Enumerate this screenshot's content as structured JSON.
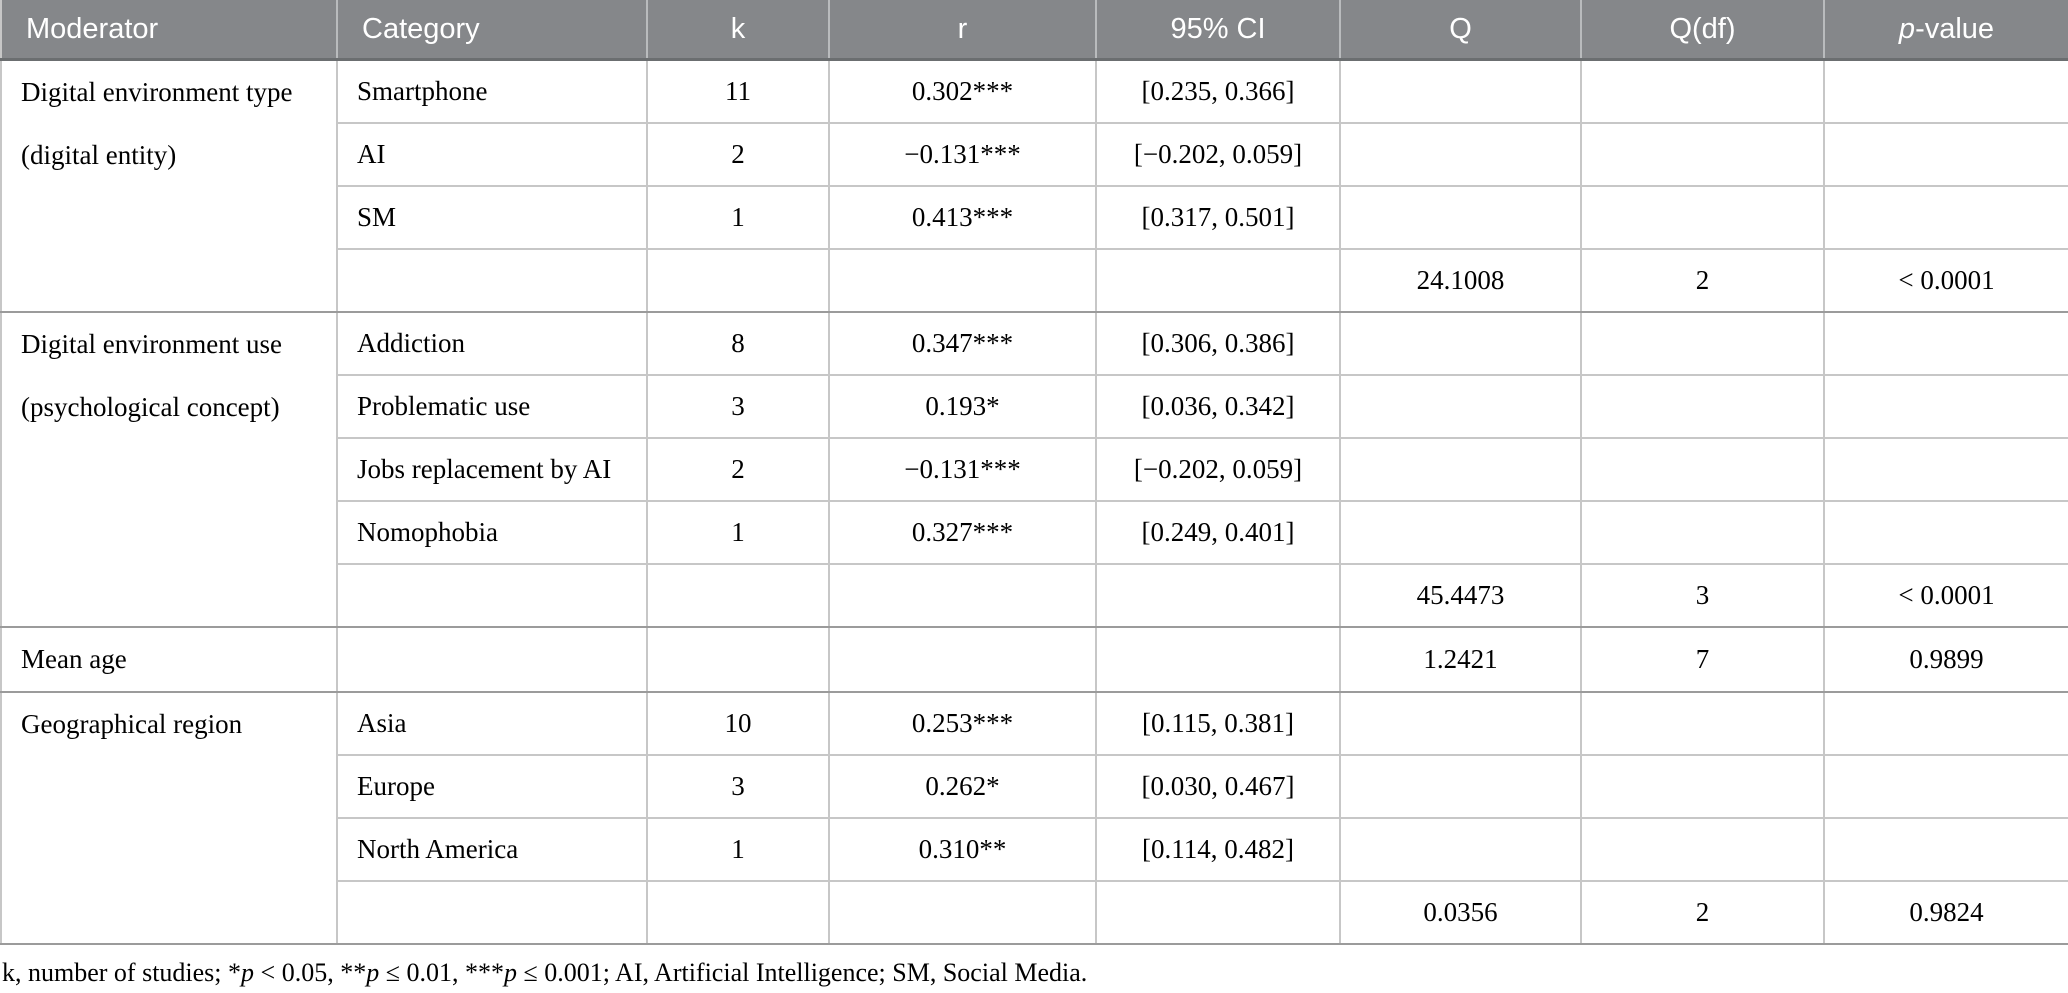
{
  "header": {
    "moderator": "Moderator",
    "category": "Category",
    "k": "k",
    "r": "r",
    "ci": "95% CI",
    "q": "Q",
    "qdf": "Q(df)",
    "p_italic": "p",
    "p_rest": "-value"
  },
  "groups": [
    {
      "moderator_line1": "Digital environment type",
      "moderator_line2": "(digital entity)",
      "rows": [
        {
          "category": "Smartphone",
          "k": "11",
          "r": "0.302***",
          "ci": "[0.235, 0.366]",
          "q": "",
          "qdf": "",
          "p": ""
        },
        {
          "category": "AI",
          "k": "2",
          "r": "−0.131***",
          "ci": "[−0.202, 0.059]",
          "q": "",
          "qdf": "",
          "p": ""
        },
        {
          "category": "SM",
          "k": "1",
          "r": "0.413***",
          "ci": "[0.317, 0.501]",
          "q": "",
          "qdf": "",
          "p": ""
        },
        {
          "category": "",
          "k": "",
          "r": "",
          "ci": "",
          "q": "24.1008",
          "qdf": "2",
          "p": "< 0.0001"
        }
      ]
    },
    {
      "moderator_line1": "Digital environment use",
      "moderator_line2": "(psychological concept)",
      "rows": [
        {
          "category": "Addiction",
          "k": "8",
          "r": "0.347***",
          "ci": "[0.306, 0.386]",
          "q": "",
          "qdf": "",
          "p": ""
        },
        {
          "category": "Problematic use",
          "k": "3",
          "r": "0.193*",
          "ci": "[0.036, 0.342]",
          "q": "",
          "qdf": "",
          "p": ""
        },
        {
          "category": "Jobs replacement by AI",
          "k": "2",
          "r": "−0.131***",
          "ci": "[−0.202, 0.059]",
          "q": "",
          "qdf": "",
          "p": ""
        },
        {
          "category": "Nomophobia",
          "k": "1",
          "r": "0.327***",
          "ci": "[0.249, 0.401]",
          "q": "",
          "qdf": "",
          "p": ""
        },
        {
          "category": "",
          "k": "",
          "r": "",
          "ci": "",
          "q": "45.4473",
          "qdf": "3",
          "p": "< 0.0001"
        }
      ]
    },
    {
      "moderator_line1": "Mean age",
      "moderator_line2": "",
      "rows": [
        {
          "category": "",
          "k": "",
          "r": "",
          "ci": "",
          "q": "1.2421",
          "qdf": "7",
          "p": "0.9899"
        }
      ]
    },
    {
      "moderator_line1": "Geographical region",
      "moderator_line2": "",
      "rows": [
        {
          "category": "Asia",
          "k": "10",
          "r": "0.253***",
          "ci": "[0.115, 0.381]",
          "q": "",
          "qdf": "",
          "p": ""
        },
        {
          "category": "Europe",
          "k": "3",
          "r": "0.262*",
          "ci": "[0.030, 0.467]",
          "q": "",
          "qdf": "",
          "p": ""
        },
        {
          "category": "North America",
          "k": "1",
          "r": "0.310**",
          "ci": "[0.114, 0.482]",
          "q": "",
          "qdf": "",
          "p": ""
        },
        {
          "category": "",
          "k": "",
          "r": "",
          "ci": "",
          "q": "0.0356",
          "qdf": "2",
          "p": "0.9824"
        }
      ]
    }
  ],
  "footnote_segments": [
    {
      "text": "k, number of studies; *",
      "italic": false
    },
    {
      "text": "p",
      "italic": true
    },
    {
      "text": " < 0.05, **",
      "italic": false
    },
    {
      "text": "p",
      "italic": true
    },
    {
      "text": " ≤ 0.01, ***",
      "italic": false
    },
    {
      "text": "p",
      "italic": true
    },
    {
      "text": " ≤ 0.001; AI, Artificial Intelligence; SM, Social Media.",
      "italic": false
    }
  ],
  "colors": {
    "header_bg": "#85878a",
    "header_text": "#ffffff",
    "header_separator": "#b9bbbd",
    "header_bottom_border": "#6b6e70",
    "row_line": "#c7c7c7",
    "group_line": "#9b9b9b",
    "text": "#000000"
  }
}
